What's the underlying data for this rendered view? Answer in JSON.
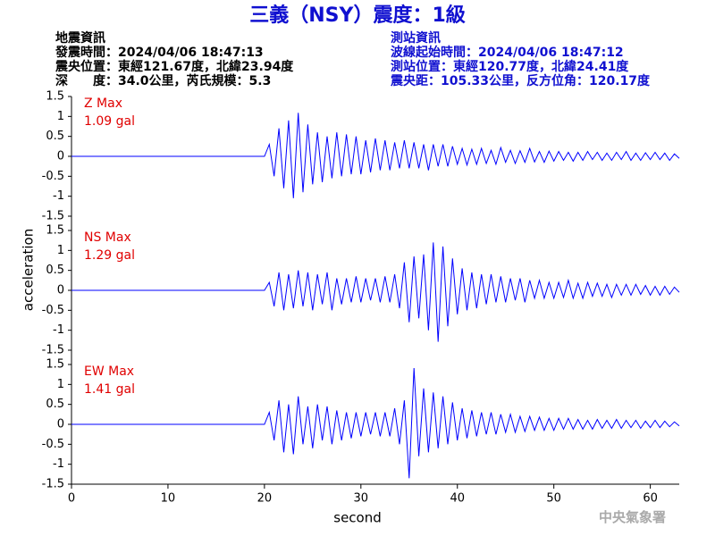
{
  "title": "三義（NSY）震度：1級",
  "event_info": [
    "地震資訊",
    "發震時間：2024/04/06 18:47:13",
    "震央位置：東經121.67度，北緯23.94度",
    "深　　度：34.0公里，芮氏規模：5.3"
  ],
  "station_info": [
    "測站資訊",
    "波線起始時間：2024/04/06 18:47:12",
    "測站位置：東經120.77度，北緯24.41度",
    "震央距：105.33公里，反方位角：120.17度"
  ],
  "y_label": "acceleration",
  "x_label": "second",
  "watermark": "中央氣象署",
  "chart_data": [
    {
      "type": "line",
      "annotations": [
        "Z Max",
        "1.09 gal"
      ],
      "annotation_color": "#e00000",
      "xlim": [
        0,
        63
      ],
      "ylim": [
        -1.5,
        1.5
      ],
      "yticks": [
        -1.5,
        -1,
        -0.5,
        0,
        0.5,
        1,
        1.5
      ],
      "x": [
        0,
        20,
        20.5,
        21,
        21.5,
        22,
        22.5,
        23,
        23.5,
        24,
        24.5,
        25,
        25.5,
        26,
        26.5,
        27,
        27.5,
        28,
        28.5,
        29,
        29.5,
        30,
        30.5,
        31,
        31.5,
        32,
        32.5,
        33,
        33.5,
        34,
        34.5,
        35,
        35.5,
        36,
        36.5,
        37,
        37.5,
        38,
        38.5,
        39,
        39.5,
        40,
        40.5,
        41,
        41.5,
        42,
        42.5,
        43,
        43.5,
        44,
        44.5,
        45,
        45.5,
        46,
        46.5,
        47,
        47.5,
        48,
        48.5,
        49,
        49.5,
        50,
        50.5,
        51,
        51.5,
        52,
        52.5,
        53,
        53.5,
        54,
        54.5,
        55,
        55.5,
        56,
        56.5,
        57,
        57.5,
        58,
        58.5,
        59,
        59.5,
        60,
        60.5,
        61,
        61.5,
        62,
        62.5,
        63
      ],
      "series": [
        {
          "color": "#0000ff",
          "values": [
            0,
            0,
            0.3,
            -0.5,
            0.7,
            -0.8,
            0.9,
            -1.05,
            1.09,
            -0.9,
            0.8,
            -0.7,
            0.6,
            -0.65,
            0.5,
            -0.55,
            0.6,
            -0.5,
            0.55,
            -0.45,
            0.5,
            -0.45,
            0.4,
            -0.4,
            0.45,
            -0.35,
            0.4,
            -0.35,
            0.35,
            -0.3,
            0.4,
            -0.3,
            0.35,
            -0.3,
            0.3,
            -0.35,
            0.3,
            -0.25,
            0.3,
            -0.25,
            0.25,
            -0.2,
            0.2,
            -0.22,
            0.18,
            -0.2,
            0.2,
            -0.18,
            0.15,
            -0.2,
            0.22,
            -0.15,
            0.15,
            -0.18,
            0.14,
            -0.15,
            0.2,
            -0.14,
            0.12,
            -0.15,
            0.13,
            -0.12,
            0.12,
            -0.1,
            0.1,
            -0.12,
            0.1,
            -0.1,
            0.12,
            -0.08,
            0.1,
            -0.1,
            0.08,
            -0.1,
            0.1,
            -0.08,
            0.12,
            -0.1,
            0.08,
            -0.1,
            0.09,
            -0.08,
            0.1,
            -0.08,
            0.08,
            -0.1,
            0.06,
            -0.05
          ]
        }
      ]
    },
    {
      "type": "line",
      "annotations": [
        "NS Max",
        "1.29 gal"
      ],
      "annotation_color": "#e00000",
      "xlim": [
        0,
        63
      ],
      "ylim": [
        -1.5,
        1.5
      ],
      "yticks": [
        -1.5,
        -1,
        -0.5,
        0,
        0.5,
        1,
        1.5
      ],
      "x": [
        0,
        20,
        20.5,
        21,
        21.5,
        22,
        22.5,
        23,
        23.5,
        24,
        24.5,
        25,
        25.5,
        26,
        26.5,
        27,
        27.5,
        28,
        28.5,
        29,
        29.5,
        30,
        30.5,
        31,
        31.5,
        32,
        32.5,
        33,
        33.5,
        34,
        34.5,
        35,
        35.5,
        36,
        36.5,
        37,
        37.5,
        38,
        38.5,
        39,
        39.5,
        40,
        40.5,
        41,
        41.5,
        42,
        42.5,
        43,
        43.5,
        44,
        44.5,
        45,
        45.5,
        46,
        46.5,
        47,
        47.5,
        48,
        48.5,
        49,
        49.5,
        50,
        50.5,
        51,
        51.5,
        52,
        52.5,
        53,
        53.5,
        54,
        54.5,
        55,
        55.5,
        56,
        56.5,
        57,
        57.5,
        58,
        58.5,
        59,
        59.5,
        60,
        60.5,
        61,
        61.5,
        62,
        62.5,
        63
      ],
      "series": [
        {
          "color": "#0000ff",
          "values": [
            0,
            0,
            0.2,
            -0.4,
            0.45,
            -0.5,
            0.4,
            -0.45,
            0.5,
            -0.4,
            0.45,
            -0.5,
            0.4,
            -0.35,
            0.45,
            -0.5,
            0.3,
            -0.35,
            0.3,
            -0.3,
            0.35,
            -0.3,
            0.3,
            -0.25,
            0.3,
            -0.3,
            0.35,
            -0.3,
            0.4,
            -0.45,
            0.7,
            -0.8,
            0.85,
            -0.7,
            0.9,
            -1.0,
            1.2,
            -1.29,
            1.1,
            -0.9,
            0.8,
            -0.6,
            0.55,
            -0.5,
            0.45,
            -0.45,
            0.4,
            -0.35,
            0.4,
            -0.3,
            0.35,
            -0.3,
            0.3,
            -0.25,
            0.3,
            -0.3,
            0.25,
            -0.2,
            0.25,
            -0.2,
            0.2,
            -0.2,
            0.2,
            -0.18,
            0.25,
            -0.2,
            0.18,
            -0.2,
            0.2,
            -0.15,
            0.18,
            -0.15,
            0.15,
            -0.18,
            0.15,
            -0.12,
            0.15,
            -0.12,
            0.15,
            -0.1,
            0.12,
            -0.12,
            0.1,
            -0.12,
            0.1,
            -0.1,
            0.08,
            -0.05
          ]
        }
      ]
    },
    {
      "type": "line",
      "annotations": [
        "EW Max",
        "1.41 gal"
      ],
      "annotation_color": "#e00000",
      "xlim": [
        0,
        63
      ],
      "ylim": [
        -1.5,
        1.5
      ],
      "yticks": [
        -1.5,
        -1,
        -0.5,
        0,
        0.5,
        1,
        1.5
      ],
      "xticks": [
        0,
        10,
        20,
        30,
        40,
        50,
        60
      ],
      "x": [
        0,
        20,
        20.5,
        21,
        21.5,
        22,
        22.5,
        23,
        23.5,
        24,
        24.5,
        25,
        25.5,
        26,
        26.5,
        27,
        27.5,
        28,
        28.5,
        29,
        29.5,
        30,
        30.5,
        31,
        31.5,
        32,
        32.5,
        33,
        33.5,
        34,
        34.5,
        35,
        35.5,
        36,
        36.5,
        37,
        37.5,
        38,
        38.5,
        39,
        39.5,
        40,
        40.5,
        41,
        41.5,
        42,
        42.5,
        43,
        43.5,
        44,
        44.5,
        45,
        45.5,
        46,
        46.5,
        47,
        47.5,
        48,
        48.5,
        49,
        49.5,
        50,
        50.5,
        51,
        51.5,
        52,
        52.5,
        53,
        53.5,
        54,
        54.5,
        55,
        55.5,
        56,
        56.5,
        57,
        57.5,
        58,
        58.5,
        59,
        59.5,
        60,
        60.5,
        61,
        61.5,
        62,
        62.5,
        63
      ],
      "series": [
        {
          "color": "#0000ff",
          "values": [
            0,
            0,
            0.3,
            -0.4,
            0.6,
            -0.7,
            0.5,
            -0.75,
            0.7,
            -0.5,
            0.45,
            -0.6,
            0.5,
            -0.4,
            0.45,
            -0.5,
            0.35,
            -0.4,
            0.3,
            -0.35,
            0.3,
            -0.3,
            0.3,
            -0.25,
            0.3,
            -0.3,
            0.3,
            -0.3,
            0.4,
            -0.5,
            0.6,
            -1.35,
            1.41,
            -0.8,
            0.9,
            -0.7,
            0.8,
            -0.6,
            0.7,
            -0.5,
            0.55,
            -0.4,
            0.4,
            -0.35,
            0.35,
            -0.3,
            0.3,
            -0.25,
            0.3,
            -0.25,
            0.25,
            -0.2,
            0.25,
            -0.2,
            0.2,
            -0.18,
            0.2,
            -0.15,
            0.18,
            -0.15,
            0.15,
            -0.15,
            0.15,
            -0.12,
            0.15,
            -0.12,
            0.12,
            -0.12,
            0.1,
            -0.12,
            0.12,
            -0.1,
            0.1,
            -0.1,
            0.12,
            -0.1,
            0.1,
            -0.08,
            0.1,
            -0.1,
            0.08,
            -0.08,
            0.1,
            -0.08,
            0.08,
            -0.06,
            0.06,
            -0.04
          ]
        }
      ]
    }
  ]
}
